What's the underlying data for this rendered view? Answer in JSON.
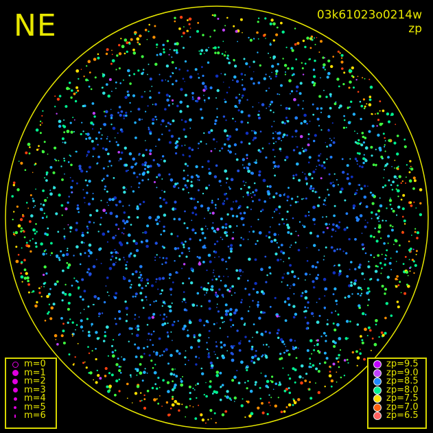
{
  "direction_label": "NE",
  "image_id": "03k61023o0214w",
  "mode_label": "zp",
  "horizon_color": "#e8e800",
  "magnitude_legend": [
    {
      "label": "m=0",
      "hollow": true
    },
    {
      "label": "m=1"
    },
    {
      "label": "m=2"
    },
    {
      "label": "m=3"
    },
    {
      "label": "m=4"
    },
    {
      "label": "m=5"
    },
    {
      "label": "m=6"
    }
  ],
  "zp_legend": [
    {
      "label": "zp=9.5",
      "color": "#c000ff"
    },
    {
      "label": "zp=9.0",
      "color": "#c040ff"
    },
    {
      "label": "zp=8.5",
      "color": "#2088ff"
    },
    {
      "label": "zp=8.0",
      "color": "#00f090"
    },
    {
      "label": "zp=7.5",
      "color": "#ffe000"
    },
    {
      "label": "zp=7.0",
      "color": "#ff6010"
    },
    {
      "label": "zp=6.5",
      "color": "#ff6060"
    }
  ]
}
